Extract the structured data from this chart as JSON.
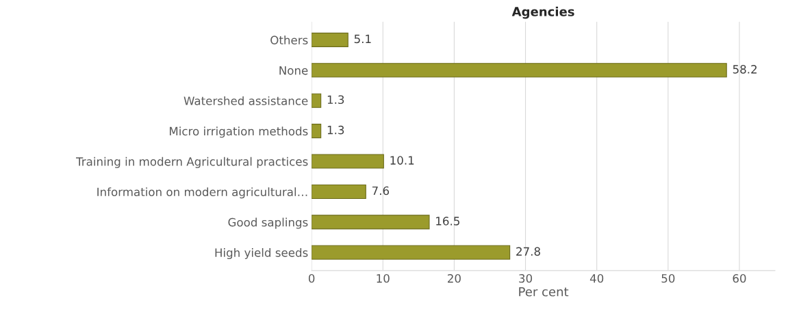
{
  "chart_data": {
    "type": "bar",
    "orientation": "horizontal",
    "title": "Agencies",
    "xlabel": "Per cent",
    "categories": [
      "Others",
      "None",
      "Watershed assistance",
      "Micro irrigation methods",
      "Training in modern Agricultural practices",
      "Information on modern agricultural…",
      "Good saplings",
      "High yield seeds"
    ],
    "values": [
      5.1,
      58.2,
      1.3,
      1.3,
      10.1,
      7.6,
      16.5,
      27.8
    ],
    "color": "#9b9b2c",
    "xlim": [
      0,
      65
    ],
    "xticks": [
      0,
      10,
      20,
      30,
      40,
      50,
      60
    ],
    "grid": "x",
    "data_labels": true
  }
}
